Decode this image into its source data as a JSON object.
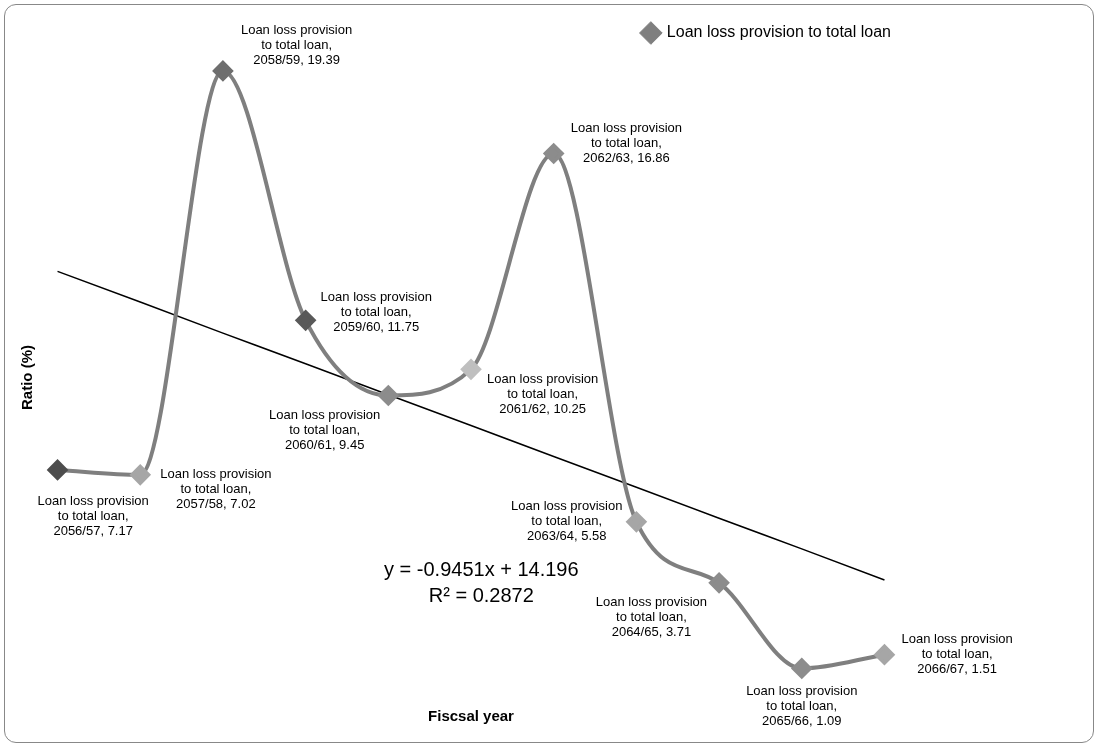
{
  "chart_data": {
    "type": "line",
    "xlabel": "Fiscsal year",
    "ylabel": "Ratio (%)",
    "categories": [
      null,
      null,
      null,
      null,
      null,
      null,
      null,
      null,
      null,
      null,
      null
    ],
    "series": [
      {
        "name": "Loan loss provision to total loan",
        "marker": "diamond",
        "color": "#7f7f7f",
        "colors": [
          "#4d4d4d",
          "#a6a6a6",
          "#6e6e6e",
          "#595959",
          "#8c8c8c",
          "#bfbfbf",
          "#8c8c8c",
          "#a6a6a6",
          "#8c8c8c",
          "#8c8c8c",
          "#a6a6a6"
        ],
        "values": [
          7.17,
          7.02,
          19.39,
          11.75,
          9.45,
          10.25,
          16.86,
          5.58,
          3.71,
          1.09,
          1.51
        ],
        "value_labels": [
          "Loan loss provision to total loan, 2056/57, 7.17",
          "Loan loss provision to total loan, 2057/58, 7.02",
          "Loan loss provision to total loan, 2058/59, 19.39",
          "Loan loss provision to total loan, 2059/60, 11.75",
          "Loan loss provision to total loan, 2060/61, 9.45",
          "Loan loss provision to total loan, 2061/62, 10.25",
          "Loan loss provision to total loan, 2062/63, 16.86",
          "Loan loss provision to total loan, 2063/64, 5.58",
          "Loan loss provision to total loan, 2064/65, 3.71",
          "Loan loss provision to total loan, 2065/66, 1.09",
          "Loan loss provision to total loan, 2066/67, 1.51"
        ]
      },
      {
        "type": "line",
        "marker": "none",
        "color": "#000000",
        "values": [
          13.25,
          12.31,
          11.36,
          10.42,
          9.47,
          8.53,
          7.58,
          6.64,
          5.69,
          4.75,
          3.8
        ]
      }
    ],
    "legend": "top right",
    "grid": false,
    "tick_labels": false,
    "annotations": [
      "y = -0.9451x + 14.196",
      "R² = 0.2872"
    ]
  }
}
